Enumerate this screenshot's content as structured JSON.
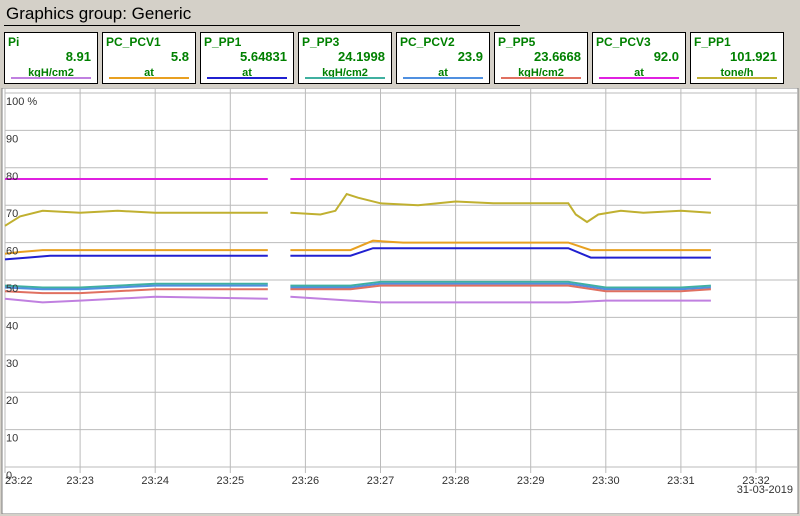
{
  "window": {
    "title": "Graphics group: Generic"
  },
  "tags": [
    {
      "name": "Pi",
      "value": "8.91",
      "unit": "kgH/cm2",
      "color": "#c080e0"
    },
    {
      "name": "PC_PCV1",
      "value": "5.8",
      "unit": "at",
      "color": "#e8a020"
    },
    {
      "name": "P_PP1",
      "value": "5.64831",
      "unit": "at",
      "color": "#2020d0"
    },
    {
      "name": "P_PP3",
      "value": "24.1998",
      "unit": "kgH/cm2",
      "color": "#40b0a0"
    },
    {
      "name": "PC_PCV2",
      "value": "23.9",
      "unit": "at",
      "color": "#5090e0"
    },
    {
      "name": "P_PP5",
      "value": "23.6668",
      "unit": "kgH/cm2",
      "color": "#e07060"
    },
    {
      "name": "PC_PCV3",
      "value": "92.0",
      "unit": "at",
      "color": "#e020e0"
    },
    {
      "name": "F_PP1",
      "value": "101.921",
      "unit": "tone/h",
      "color": "#c0b030"
    }
  ],
  "chart_data": {
    "type": "line",
    "y_ticks": [
      "100 %",
      "90",
      "80",
      "70",
      "60",
      "50",
      "40",
      "30",
      "20",
      "10",
      "0"
    ],
    "x_ticks": [
      "23:22",
      "23:23",
      "23:24",
      "23:25",
      "23:26",
      "23:27",
      "23:28",
      "23:29",
      "23:30",
      "23:31",
      "23:32"
    ],
    "date_label": "31-03-2019",
    "ylim": [
      0,
      100
    ],
    "xlim": [
      0,
      10
    ],
    "grid": true,
    "series": [
      {
        "color": "#e020e0",
        "segments": [
          [
            [
              0,
              77
            ],
            [
              3.5,
              77
            ]
          ],
          [
            [
              3.8,
              77
            ],
            [
              9.4,
              77
            ]
          ]
        ]
      },
      {
        "color": "#c0b030",
        "segments": [
          [
            [
              0,
              64.5
            ],
            [
              0.2,
              67
            ],
            [
              0.5,
              68.5
            ],
            [
              1,
              68
            ],
            [
              1.5,
              68.5
            ],
            [
              2,
              68
            ],
            [
              3.5,
              68
            ]
          ],
          [
            [
              3.8,
              68
            ],
            [
              4.2,
              67.5
            ],
            [
              4.4,
              68.5
            ],
            [
              4.55,
              73
            ],
            [
              4.7,
              72
            ],
            [
              5,
              70.5
            ],
            [
              5.5,
              70
            ],
            [
              6,
              71
            ],
            [
              6.5,
              70.5
            ],
            [
              7,
              70.5
            ],
            [
              7.5,
              70.5
            ],
            [
              7.6,
              67.5
            ],
            [
              7.75,
              65.5
            ],
            [
              7.9,
              67.5
            ],
            [
              8.2,
              68.5
            ],
            [
              8.5,
              68
            ],
            [
              9,
              68.5
            ],
            [
              9.4,
              68
            ]
          ]
        ]
      },
      {
        "color": "#e8a020",
        "segments": [
          [
            [
              0,
              57
            ],
            [
              0.2,
              57.5
            ],
            [
              0.5,
              58
            ],
            [
              3.5,
              58
            ]
          ],
          [
            [
              3.8,
              58
            ],
            [
              4.6,
              58
            ],
            [
              4.9,
              60.5
            ],
            [
              5.3,
              60
            ],
            [
              7.5,
              60
            ],
            [
              7.8,
              58
            ],
            [
              9.4,
              58
            ]
          ]
        ]
      },
      {
        "color": "#2020d0",
        "segments": [
          [
            [
              0,
              55.5
            ],
            [
              0.3,
              56
            ],
            [
              0.6,
              56.5
            ],
            [
              3.5,
              56.5
            ]
          ],
          [
            [
              3.8,
              56.5
            ],
            [
              4.6,
              56.5
            ],
            [
              4.9,
              58.5
            ],
            [
              5.3,
              58.5
            ],
            [
              7.5,
              58.5
            ],
            [
              7.8,
              56
            ],
            [
              9.4,
              56
            ]
          ]
        ]
      },
      {
        "color": "#40b0a0",
        "segments": [
          [
            [
              0,
              48.5
            ],
            [
              0.5,
              48
            ],
            [
              1,
              48
            ],
            [
              2,
              49
            ],
            [
              3.5,
              49
            ]
          ],
          [
            [
              3.8,
              48.5
            ],
            [
              4.6,
              48.5
            ],
            [
              5,
              49.5
            ],
            [
              7.5,
              49.5
            ],
            [
              8,
              48
            ],
            [
              9,
              48
            ],
            [
              9.4,
              48.5
            ]
          ]
        ]
      },
      {
        "color": "#5090e0",
        "segments": [
          [
            [
              0,
              48
            ],
            [
              0.5,
              47.5
            ],
            [
              1,
              47.5
            ],
            [
              2,
              48.5
            ],
            [
              3.5,
              48.5
            ]
          ],
          [
            [
              3.8,
              48
            ],
            [
              4.6,
              48
            ],
            [
              5,
              49
            ],
            [
              7.5,
              49
            ],
            [
              8,
              47.5
            ],
            [
              9,
              47.5
            ],
            [
              9.4,
              48
            ]
          ]
        ]
      },
      {
        "color": "#e07060",
        "segments": [
          [
            [
              0,
              47
            ],
            [
              0.5,
              46.5
            ],
            [
              1,
              46.5
            ],
            [
              2,
              47.5
            ],
            [
              3.5,
              47.5
            ]
          ],
          [
            [
              3.8,
              47.5
            ],
            [
              4.6,
              47.5
            ],
            [
              5,
              48.5
            ],
            [
              7.5,
              48.5
            ],
            [
              8,
              47
            ],
            [
              9,
              47
            ],
            [
              9.4,
              47.5
            ]
          ]
        ]
      },
      {
        "color": "#c080e0",
        "segments": [
          [
            [
              0,
              45
            ],
            [
              0.5,
              44
            ],
            [
              1,
              44.5
            ],
            [
              2,
              45.5
            ],
            [
              3.5,
              45
            ]
          ],
          [
            [
              3.8,
              45.5
            ],
            [
              4.6,
              44.5
            ],
            [
              5,
              44
            ],
            [
              7.5,
              44
            ],
            [
              8,
              44.5
            ],
            [
              9,
              44.5
            ],
            [
              9.4,
              44.5
            ]
          ]
        ]
      }
    ]
  }
}
